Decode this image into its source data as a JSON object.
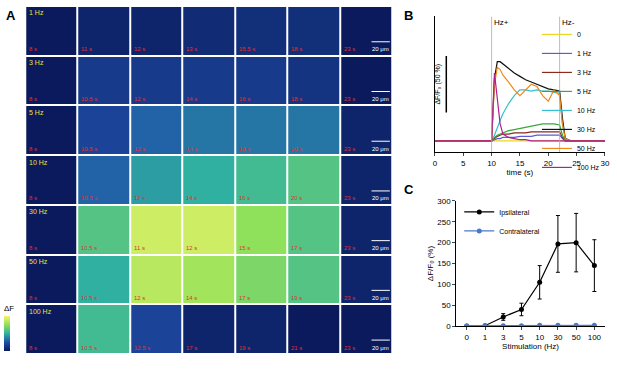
{
  "chart_data": [
    {
      "panel": "A",
      "type": "heatmap",
      "rows": [
        "1 Hz",
        "3 Hz",
        "5 Hz",
        "10 Hz",
        "30 Hz",
        "50 Hz",
        "100 Hz"
      ],
      "times": [
        [
          "8 s",
          "11 s",
          "12 s",
          "13 s",
          "15.5 s",
          "18 s",
          "23 s"
        ],
        [
          "8 s",
          "10.5 s",
          "12 s",
          "14 s",
          "16 s",
          "18 s",
          "23 s"
        ],
        [
          "8 s",
          "10.5 s",
          "12 s",
          "14 s",
          "18 s",
          "20 s",
          "23 s"
        ],
        [
          "8 s",
          "10.5 s",
          "12 s",
          "14 s",
          "16 s",
          "20 s",
          "23 s"
        ],
        [
          "8 s",
          "10.5 s",
          "11 s",
          "12 s",
          "15 s",
          "17 s",
          "23 s"
        ],
        [
          "8 s",
          "10.5 s",
          "12 s",
          "14 s",
          "17 s",
          "19 s",
          "23 s"
        ],
        [
          "8 s",
          "10.5 s",
          "12.5 s",
          "17 s",
          "19 s",
          "21 s",
          "23 s"
        ]
      ],
      "values": [
        [
          0,
          0.05,
          0.05,
          0.08,
          0.1,
          0.1,
          0
        ],
        [
          0,
          0.15,
          0.15,
          0.15,
          0.15,
          0.12,
          0
        ],
        [
          0,
          0.2,
          0.3,
          0.35,
          0.35,
          0.35,
          0.05
        ],
        [
          0,
          0.3,
          0.45,
          0.5,
          0.55,
          0.6,
          0.05
        ],
        [
          0,
          0.6,
          0.9,
          0.9,
          0.75,
          0.6,
          0.05
        ],
        [
          0,
          0.5,
          0.85,
          0.8,
          0.7,
          0.6,
          0.05
        ],
        [
          0,
          0.55,
          0.2,
          0.05,
          0.05,
          0,
          0
        ]
      ],
      "zlim": [
        0,
        1
      ],
      "colorbar_label": "ΔF",
      "scale_bar": "20 μm",
      "tick_labels": false
    },
    {
      "panel": "B",
      "type": "line",
      "xlabel": "time (s)",
      "x": [
        0,
        5,
        10,
        10.5,
        11,
        11.5,
        12,
        13,
        14,
        15,
        16,
        17,
        18,
        19,
        20,
        21,
        22,
        22.5,
        23,
        24,
        26,
        28,
        30
      ],
      "series": [
        {
          "name": "0",
          "color": "#e8d820",
          "values": [
            0,
            0,
            0,
            0,
            0,
            0,
            0,
            0,
            0,
            0,
            0,
            0,
            0,
            0,
            0,
            0,
            0,
            0,
            0,
            0,
            0,
            0,
            0
          ]
        },
        {
          "name": "1 Hz",
          "color": "#5b5bd6",
          "values": [
            0,
            0,
            0,
            1,
            2,
            2,
            3,
            3,
            3,
            4,
            4,
            4,
            5,
            5,
            5,
            5,
            5,
            2,
            0,
            0,
            0,
            0,
            0
          ]
        },
        {
          "name": "3 Hz",
          "color": "#8b2a1a",
          "values": [
            0,
            0,
            0,
            2,
            4,
            5,
            6,
            6,
            7,
            7,
            7,
            8,
            8,
            8,
            8,
            8,
            8,
            3,
            0,
            0,
            0,
            0,
            0
          ]
        },
        {
          "name": "5 Hz",
          "color": "#3aa63a",
          "values": [
            0,
            0,
            0,
            3,
            5,
            6,
            7,
            9,
            10,
            11,
            12,
            13,
            14,
            15,
            15,
            15,
            14,
            5,
            0,
            0,
            0,
            0,
            0
          ]
        },
        {
          "name": "10 Hz",
          "color": "#33c0d0",
          "values": [
            0,
            0,
            0,
            5,
            12,
            18,
            24,
            33,
            40,
            45,
            45,
            44,
            45,
            44,
            44,
            43,
            42,
            15,
            2,
            0,
            0,
            0,
            0
          ]
        },
        {
          "name": "30 Hz",
          "color": "#111111",
          "values": [
            0,
            0,
            0,
            55,
            70,
            70,
            68,
            64,
            60,
            57,
            54,
            52,
            50,
            48,
            46,
            45,
            44,
            20,
            2,
            0,
            0,
            0,
            0
          ]
        },
        {
          "name": "50 Hz",
          "color": "#f08a1c",
          "values": [
            0,
            0,
            0,
            50,
            65,
            63,
            58,
            52,
            45,
            40,
            45,
            50,
            48,
            40,
            35,
            45,
            40,
            15,
            2,
            0,
            0,
            0,
            0
          ]
        },
        {
          "name": "100 Hz",
          "color": "#b0208c",
          "values": [
            0,
            0,
            0,
            60,
            35,
            15,
            6,
            3,
            2,
            1,
            1,
            0,
            0,
            0,
            0,
            0,
            0,
            0,
            0,
            0,
            0,
            0,
            0
          ]
        }
      ],
      "xlim": [
        0,
        30
      ],
      "xticks": [
        0,
        5,
        10,
        15,
        20,
        25,
        30
      ],
      "ylim": [
        -10,
        110
      ],
      "markers": [
        {
          "x": 10,
          "label": "Hz+"
        },
        {
          "x": 22,
          "label": "Hz-"
        }
      ],
      "scale_bar": {
        "x": 2,
        "y": 25,
        "length": 50,
        "label": "ΔF/F₀ (50 %)"
      },
      "legend": "top-right",
      "tick_labels": "x"
    },
    {
      "panel": "C",
      "type": "line",
      "xlabel": "Stimulation (Hz)",
      "ylabel": "ΔF/F₀ (%)",
      "categories": [
        "0",
        "1",
        "3",
        "5",
        "10",
        "30",
        "50",
        "100"
      ],
      "series": [
        {
          "name": "Ipsilateral",
          "color": "#000000",
          "marker": "circle",
          "values": [
            0,
            1,
            22,
            40,
            105,
            197,
            200,
            145
          ],
          "errors": [
            0,
            1,
            8,
            15,
            40,
            68,
            70,
            62
          ]
        },
        {
          "name": "Contralateral",
          "color": "#4a78c8",
          "marker": "circle",
          "values": [
            1,
            1,
            1,
            1,
            2,
            2,
            2,
            2
          ],
          "errors": [
            0.5,
            0.5,
            0.5,
            0.5,
            1,
            1,
            1,
            1
          ]
        }
      ],
      "ylim": [
        0,
        300
      ],
      "yticks": [
        0,
        50,
        100,
        150,
        200,
        250,
        300
      ],
      "legend": "top-left"
    }
  ]
}
